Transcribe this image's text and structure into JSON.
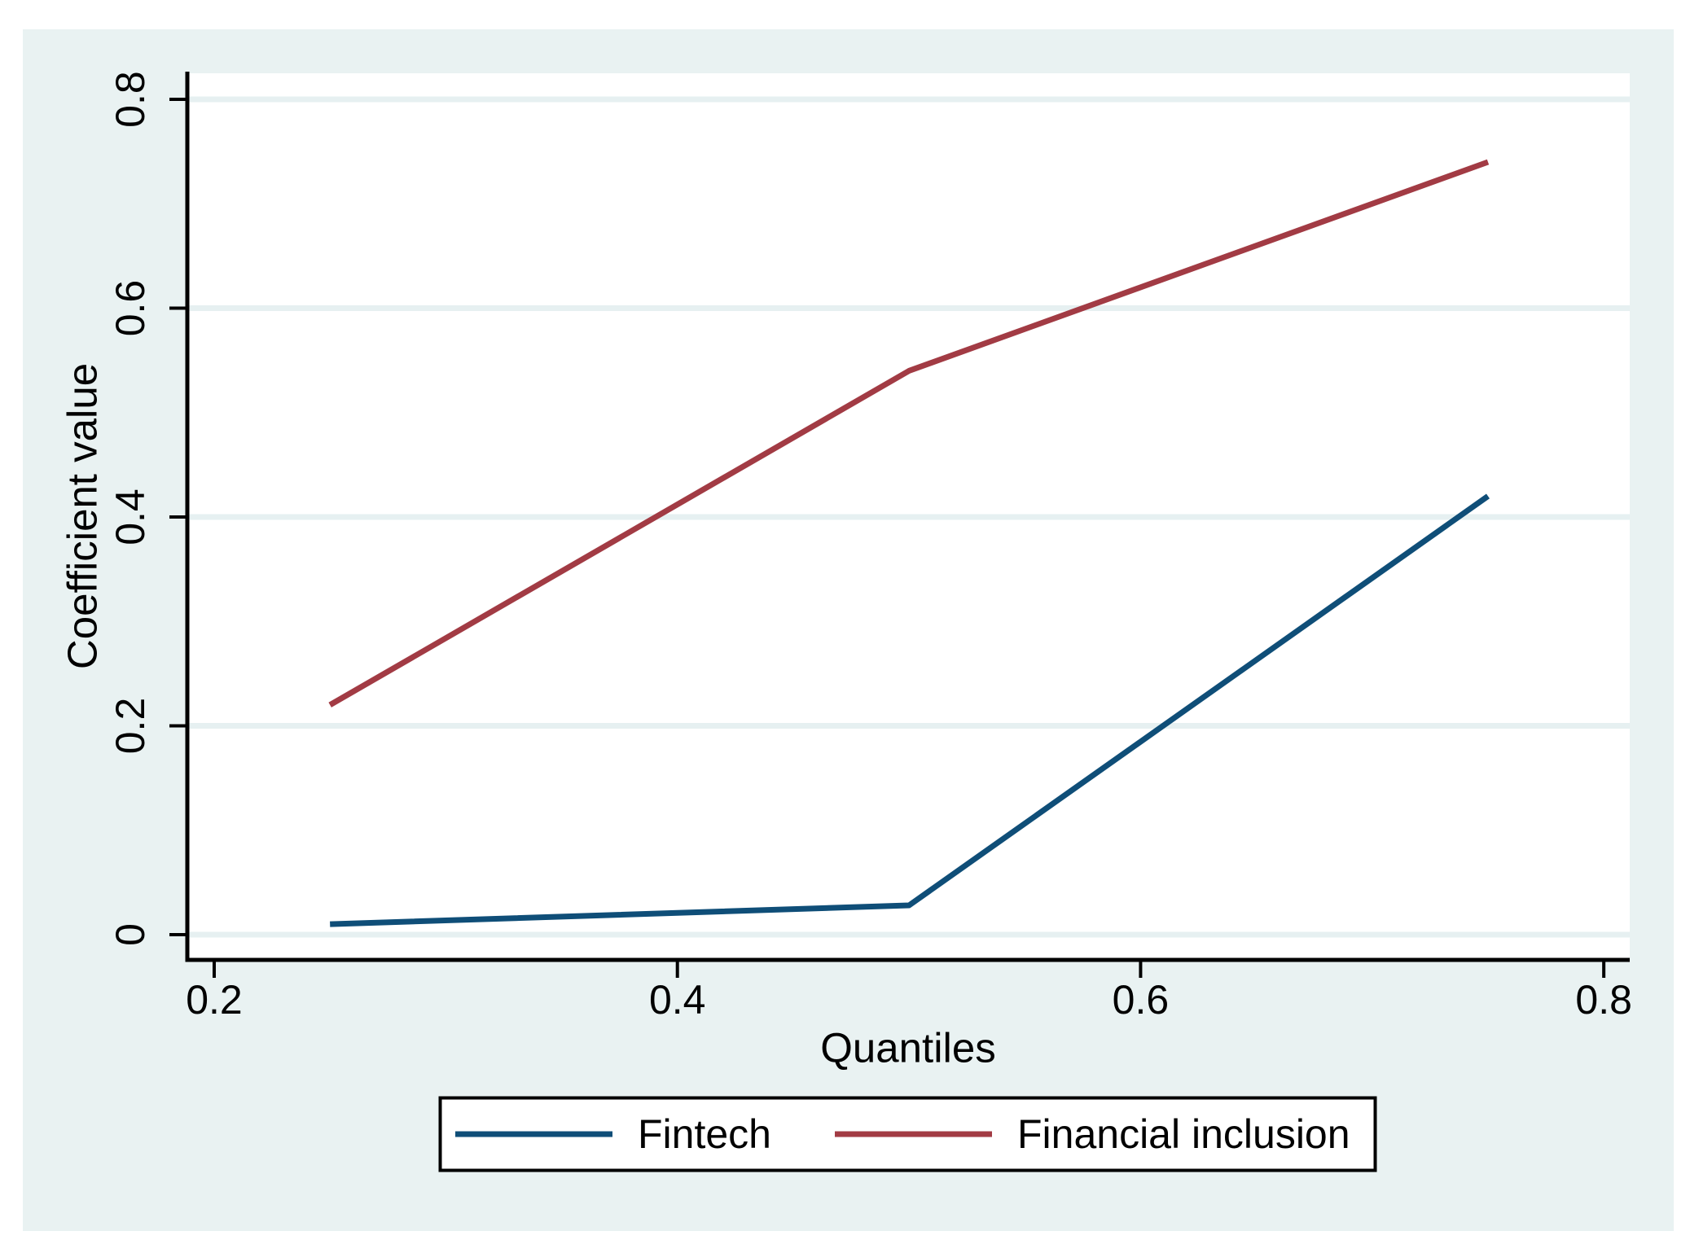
{
  "figure": {
    "page_background": "#ffffff",
    "graph_background": "#e9f2f2",
    "plot_background": "#ffffff",
    "grid_color": "#e6f0f1",
    "axis_color": "#000000",
    "text_color": "#000000",
    "legend_background": "#ffffff",
    "legend_border": "#000000"
  },
  "chart_data": {
    "type": "line",
    "title": "",
    "xlabel": "Quantiles",
    "ylabel": "Coefficient value",
    "x": [
      0.25,
      0.5,
      0.75
    ],
    "series": [
      {
        "name": "Fintech",
        "color": "#0f4e78",
        "values": [
          0.01,
          0.028,
          0.42
        ]
      },
      {
        "name": "Financial inclusion",
        "color": "#a23b44",
        "values": [
          0.22,
          0.54,
          0.74
        ]
      }
    ],
    "xticks": {
      "values": [
        0.2,
        0.4,
        0.6,
        0.8
      ],
      "labels": [
        "0.2",
        "0.4",
        "0.6",
        "0.8"
      ]
    },
    "yticks": {
      "values": [
        0,
        0.2,
        0.4,
        0.6,
        0.8
      ],
      "labels": [
        "0",
        "0.2",
        "0.4",
        "0.6",
        "0.8"
      ]
    },
    "xlim": [
      0.1884,
      0.8112
    ],
    "ylim": [
      -0.0242,
      0.825
    ],
    "grid": "horizontal",
    "legend": {
      "position": "bottom",
      "entries": [
        "Fintech",
        "Financial inclusion"
      ]
    }
  }
}
